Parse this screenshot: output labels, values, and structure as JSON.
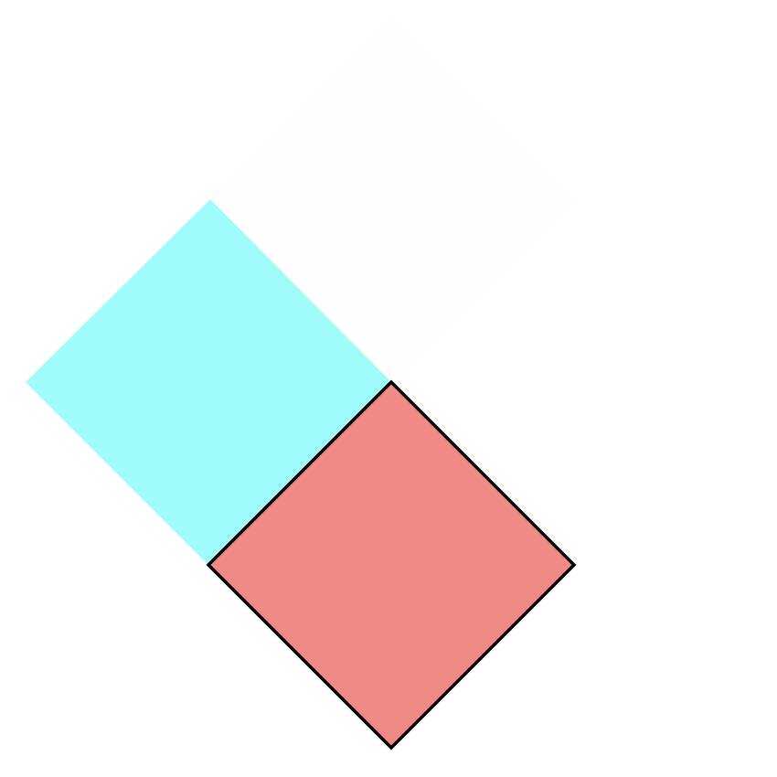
{
  "diagram": {
    "shapes": [
      {
        "name": "upper-left-square",
        "shape": "square",
        "fill": "#9ffcfa",
        "outlined": false
      },
      {
        "name": "faint-upper-square",
        "shape": "square",
        "fill": "#fefefe",
        "outlined": false
      },
      {
        "name": "lower-square",
        "shape": "square",
        "fill": "#f08a86",
        "outlined": true,
        "outline_color": "#000000"
      }
    ]
  }
}
